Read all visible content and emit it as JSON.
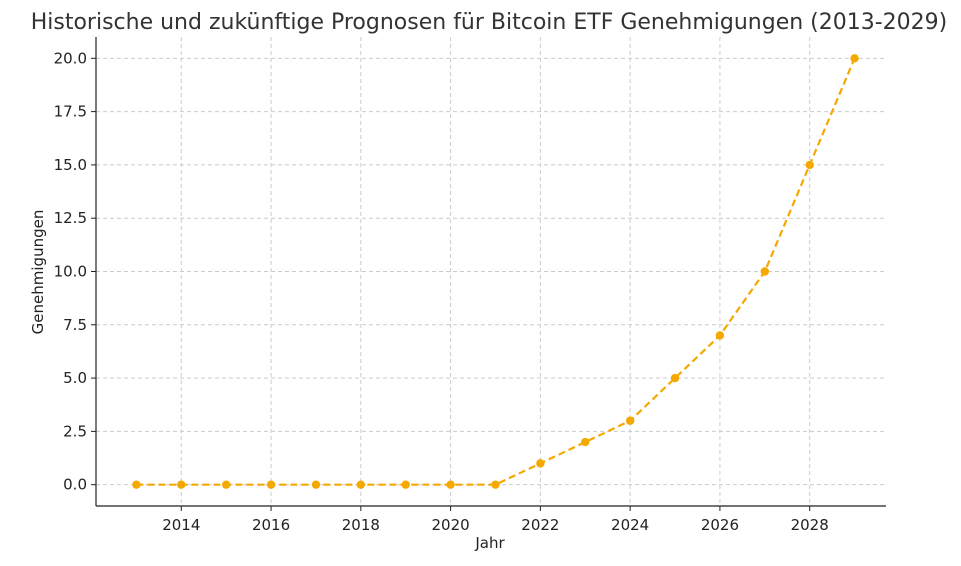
{
  "chart_data": {
    "type": "line",
    "title": "Historische und zukünftige Prognosen für Bitcoin ETF Genehmigungen (2013-2029)",
    "xlabel": "Jahr",
    "ylabel": "Genehmigungen",
    "x": [
      2013,
      2014,
      2015,
      2016,
      2017,
      2018,
      2019,
      2020,
      2021,
      2022,
      2023,
      2024,
      2025,
      2026,
      2027,
      2028,
      2029
    ],
    "series": [
      {
        "values": [
          0,
          0,
          0,
          0,
          0,
          0,
          0,
          0,
          0,
          1,
          2,
          3,
          5,
          7,
          10,
          15,
          20
        ],
        "color": "#f5a800",
        "line_style": "dashed",
        "marker": "circle"
      }
    ],
    "xlim": [
      2012.1,
      2029.7
    ],
    "ylim": [
      -1.0,
      21.0
    ],
    "x_ticks": [
      "2014",
      "2016",
      "2018",
      "2020",
      "2022",
      "2024",
      "2026",
      "2028"
    ],
    "y_ticks": [
      "0.0",
      "2.5",
      "5.0",
      "7.5",
      "10.0",
      "12.5",
      "15.0",
      "17.5",
      "20.0"
    ],
    "grid": true,
    "legend": "none"
  }
}
